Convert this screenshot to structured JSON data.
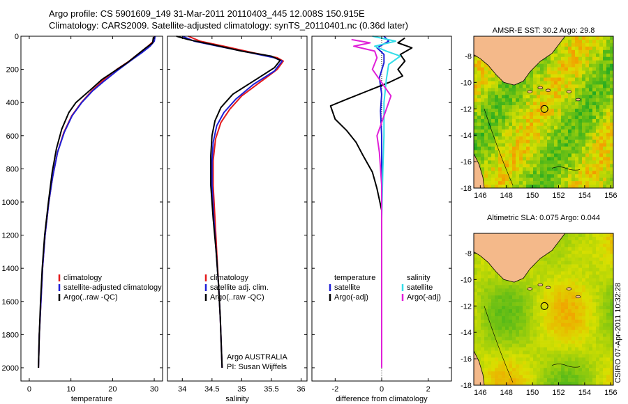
{
  "titles": {
    "line1": "Argo profile: CS 5901609_149 31-Mar-2011 20110403_445 12.008S 150.915E",
    "line2": "Climatology: CARS2009. Satellite-adjusted climatology: synTS_20110401.nc (0.36d later)"
  },
  "credit": "CSIRO 07-Apr-2011 10:32:28",
  "colors": {
    "red": "#e41a1c",
    "blue": "#1f1fd6",
    "black": "#000000",
    "cyan": "#33dde8",
    "magenta": "#e020d8",
    "land": "#f4b98a",
    "sea_hi": "#ff7f00",
    "sea_mid": "#d9e000",
    "sea_lo": "#22aa22"
  },
  "chart_data": [
    {
      "id": "temperature",
      "type": "line",
      "xlabel": "temperature",
      "xlim": [
        -2,
        32
      ],
      "ylim": [
        0,
        2080
      ],
      "y_reversed": true,
      "xticks": [
        0,
        10,
        20,
        30
      ],
      "yticks": [
        0,
        200,
        400,
        600,
        800,
        1000,
        1200,
        1400,
        1600,
        1800,
        2000
      ],
      "legend": [
        "climatology",
        "satellite-adjusted climatology",
        "Argo(..raw -QC)"
      ],
      "series": [
        {
          "name": "climatology",
          "color": "red",
          "points": [
            [
              30,
              0
            ],
            [
              29.8,
              30
            ],
            [
              28.5,
              60
            ],
            [
              26.5,
              100
            ],
            [
              24,
              150
            ],
            [
              21,
              200
            ],
            [
              18,
              260
            ],
            [
              15,
              330
            ],
            [
              12.5,
              400
            ],
            [
              10.2,
              480
            ],
            [
              8.3,
              580
            ],
            [
              6.8,
              700
            ],
            [
              5.6,
              850
            ],
            [
              4.7,
              1000
            ],
            [
              3.8,
              1200
            ],
            [
              3.2,
              1400
            ],
            [
              2.8,
              1600
            ],
            [
              2.4,
              1800
            ],
            [
              2.2,
              2000
            ]
          ]
        },
        {
          "name": "satellite-adjusted climatology",
          "color": "blue",
          "points": [
            [
              30.2,
              0
            ],
            [
              30,
              30
            ],
            [
              29,
              60
            ],
            [
              27,
              100
            ],
            [
              24.2,
              150
            ],
            [
              21,
              210
            ],
            [
              18,
              270
            ],
            [
              15.2,
              330
            ],
            [
              12.6,
              400
            ],
            [
              10.3,
              480
            ],
            [
              8.4,
              580
            ],
            [
              6.8,
              700
            ],
            [
              5.6,
              850
            ],
            [
              4.7,
              1000
            ],
            [
              3.8,
              1200
            ],
            [
              3.2,
              1400
            ],
            [
              2.8,
              1600
            ],
            [
              2.4,
              1800
            ],
            [
              2.2,
              2000
            ]
          ]
        },
        {
          "name": "Argo(..raw -QC)",
          "color": "black",
          "points": [
            [
              29.8,
              5
            ],
            [
              29.6,
              40
            ],
            [
              28,
              70
            ],
            [
              26,
              110
            ],
            [
              23.5,
              160
            ],
            [
              20.5,
              210
            ],
            [
              17.5,
              260
            ],
            [
              15.3,
              310
            ],
            [
              13,
              360
            ],
            [
              11.2,
              400
            ],
            [
              9.5,
              460
            ],
            [
              7.8,
              560
            ],
            [
              6.5,
              680
            ],
            [
              5.5,
              820
            ],
            [
              4.6,
              1000
            ],
            [
              3.7,
              1200
            ],
            [
              3.1,
              1400
            ],
            [
              2.7,
              1600
            ],
            [
              2.4,
              1800
            ],
            [
              2.2,
              2000
            ]
          ]
        }
      ]
    },
    {
      "id": "salinity",
      "type": "line",
      "xlabel": "salinity",
      "xlim": [
        33.75,
        36.1
      ],
      "ylim": [
        0,
        2080
      ],
      "y_reversed": true,
      "xticks": [
        34,
        34.5,
        35,
        35.5,
        36
      ],
      "yticks": [
        0,
        200,
        400,
        600,
        800,
        1000,
        1200,
        1400,
        1600,
        1800,
        2000
      ],
      "legend": [
        "climatology",
        "satellite adj. clim.",
        "Argo(..raw -QC)"
      ],
      "annotation": [
        "Argo AUSTRALIA",
        "PI: Susan Wijffels"
      ],
      "series": [
        {
          "name": "climatology",
          "color": "red",
          "points": [
            [
              34.1,
              0
            ],
            [
              34.3,
              30
            ],
            [
              34.7,
              60
            ],
            [
              35.2,
              100
            ],
            [
              35.6,
              130
            ],
            [
              35.7,
              150
            ],
            [
              35.6,
              200
            ],
            [
              35.3,
              280
            ],
            [
              35.0,
              360
            ],
            [
              34.8,
              440
            ],
            [
              34.65,
              520
            ],
            [
              34.56,
              620
            ],
            [
              34.52,
              750
            ],
            [
              34.52,
              900
            ],
            [
              34.55,
              1100
            ],
            [
              34.58,
              1300
            ],
            [
              34.61,
              1500
            ],
            [
              34.64,
              1700
            ],
            [
              34.66,
              1900
            ],
            [
              34.67,
              2000
            ]
          ]
        },
        {
          "name": "satellite adj. clim.",
          "color": "blue",
          "points": [
            [
              34.0,
              0
            ],
            [
              34.2,
              30
            ],
            [
              34.6,
              60
            ],
            [
              35.15,
              100
            ],
            [
              35.55,
              130
            ],
            [
              35.68,
              150
            ],
            [
              35.55,
              210
            ],
            [
              35.2,
              290
            ],
            [
              34.9,
              380
            ],
            [
              34.7,
              460
            ],
            [
              34.58,
              540
            ],
            [
              34.52,
              640
            ],
            [
              34.5,
              760
            ],
            [
              34.5,
              900
            ],
            [
              34.53,
              1100
            ],
            [
              34.57,
              1300
            ],
            [
              34.61,
              1500
            ],
            [
              34.64,
              1700
            ],
            [
              34.66,
              1900
            ],
            [
              34.67,
              2000
            ]
          ]
        },
        {
          "name": "Argo(..raw -QC)",
          "color": "black",
          "points": [
            [
              33.9,
              0
            ],
            [
              34.1,
              20
            ],
            [
              34.5,
              50
            ],
            [
              35.0,
              90
            ],
            [
              35.5,
              120
            ],
            [
              35.65,
              145
            ],
            [
              35.55,
              190
            ],
            [
              35.2,
              270
            ],
            [
              34.85,
              350
            ],
            [
              34.65,
              430
            ],
            [
              34.55,
              510
            ],
            [
              34.5,
              600
            ],
            [
              34.48,
              720
            ],
            [
              34.48,
              900
            ],
            [
              34.52,
              1100
            ],
            [
              34.57,
              1300
            ],
            [
              34.61,
              1500
            ],
            [
              34.64,
              1700
            ],
            [
              34.66,
              1900
            ],
            [
              34.67,
              2000
            ]
          ]
        }
      ]
    },
    {
      "id": "difference",
      "type": "line",
      "xlabel": "difference from climatology",
      "xlim": [
        -3,
        3
      ],
      "ylim": [
        0,
        2080
      ],
      "y_reversed": true,
      "xticks": [
        -2,
        0,
        2
      ],
      "yticks": [
        0,
        200,
        400,
        600,
        800,
        1000,
        1200,
        1400,
        1600,
        1800,
        2000
      ],
      "legend_left": [
        "temperature",
        "satellite",
        "Argo(-adj)"
      ],
      "legend_right": [
        "salinity",
        "satellite",
        "Argo(-adj)"
      ],
      "series": [
        {
          "name": "temperature satellite",
          "color": "blue",
          "points": [
            [
              0.1,
              0
            ],
            [
              0.3,
              30
            ],
            [
              -0.2,
              70
            ],
            [
              0.1,
              110
            ],
            [
              0.1,
              160
            ],
            [
              -0.1,
              250
            ],
            [
              0,
              350
            ],
            [
              -0.05,
              450
            ],
            [
              0,
              600
            ],
            [
              0,
              800
            ],
            [
              0,
              1000
            ],
            [
              0,
              1400
            ],
            [
              0,
              2000
            ]
          ]
        },
        {
          "name": "temperature Argo(-adj)",
          "color": "black",
          "points": [
            [
              1.0,
              10
            ],
            [
              0.7,
              40
            ],
            [
              1.3,
              70
            ],
            [
              0.8,
              110
            ],
            [
              1.0,
              150
            ],
            [
              0.7,
              200
            ],
            [
              0.9,
              240
            ],
            [
              0.3,
              280
            ],
            [
              -0.6,
              330
            ],
            [
              -1.5,
              380
            ],
            [
              -2.2,
              420
            ],
            [
              -2.0,
              500
            ],
            [
              -1.5,
              570
            ],
            [
              -1.1,
              640
            ],
            [
              -0.8,
              720
            ],
            [
              -0.4,
              820
            ],
            [
              -0.2,
              920
            ],
            [
              0,
              1050
            ],
            [
              0,
              1300
            ],
            [
              0,
              1700
            ],
            [
              0,
              2000
            ]
          ]
        },
        {
          "name": "salinity satellite",
          "color": "cyan",
          "points": [
            [
              -0.4,
              0
            ],
            [
              0.6,
              30
            ],
            [
              -0.3,
              60
            ],
            [
              0.2,
              90
            ],
            [
              0.8,
              120
            ],
            [
              0.3,
              170
            ],
            [
              0.2,
              260
            ],
            [
              0.1,
              400
            ],
            [
              0.1,
              600
            ],
            [
              0.05,
              800
            ],
            [
              0,
              1100
            ],
            [
              0,
              1500
            ],
            [
              0,
              2000
            ]
          ]
        },
        {
          "name": "salinity Argo(-adj)",
          "color": "magenta",
          "points": [
            [
              -1.3,
              20
            ],
            [
              -0.5,
              40
            ],
            [
              -1.2,
              60
            ],
            [
              -0.3,
              90
            ],
            [
              -0.2,
              130
            ],
            [
              -0.4,
              200
            ],
            [
              0,
              280
            ],
            [
              0.4,
              360
            ],
            [
              0.2,
              440
            ],
            [
              0,
              520
            ],
            [
              -0.2,
              600
            ],
            [
              -0.1,
              700
            ],
            [
              0,
              900
            ],
            [
              0,
              1300
            ],
            [
              0,
              2000
            ]
          ]
        }
      ]
    },
    {
      "id": "sst_map",
      "type": "heatmap",
      "title": "AMSR-E SST: 30.2 Argo: 29.8",
      "xlim": [
        145.5,
        156.2
      ],
      "ylim": [
        -18,
        -6.5
      ],
      "xticks": [
        146,
        148,
        150,
        152,
        154,
        156
      ],
      "yticks": [
        -8,
        -10,
        -12,
        -14,
        -16,
        -18
      ],
      "marker": [
        150.915,
        -12.008
      ]
    },
    {
      "id": "sla_map",
      "type": "heatmap",
      "title": "Altimetric SLA: 0.075 Argo: 0.044",
      "xlim": [
        145.5,
        156.2
      ],
      "ylim": [
        -18,
        -6.5
      ],
      "xticks": [
        146,
        148,
        150,
        152,
        154,
        156
      ],
      "yticks": [
        -8,
        -10,
        -12,
        -14,
        -16,
        -18
      ],
      "marker": [
        150.915,
        -12.008
      ]
    }
  ]
}
